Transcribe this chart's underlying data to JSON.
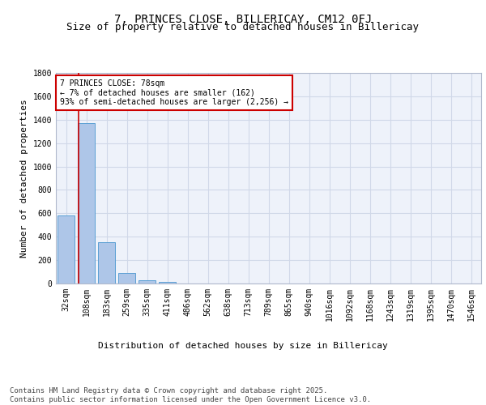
{
  "title": "7, PRINCES CLOSE, BILLERICAY, CM12 0FJ",
  "subtitle": "Size of property relative to detached houses in Billericay",
  "xlabel": "Distribution of detached houses by size in Billericay",
  "ylabel": "Number of detached properties",
  "categories": [
    "32sqm",
    "108sqm",
    "183sqm",
    "259sqm",
    "335sqm",
    "411sqm",
    "486sqm",
    "562sqm",
    "638sqm",
    "713sqm",
    "789sqm",
    "865sqm",
    "940sqm",
    "1016sqm",
    "1092sqm",
    "1168sqm",
    "1243sqm",
    "1319sqm",
    "1395sqm",
    "1470sqm",
    "1546sqm"
  ],
  "values": [
    580,
    1370,
    350,
    90,
    30,
    15,
    0,
    0,
    0,
    0,
    0,
    0,
    0,
    0,
    0,
    0,
    0,
    0,
    0,
    0,
    0
  ],
  "bar_color": "#aec6e8",
  "bar_edgecolor": "#5a9fd4",
  "grid_color": "#d0d8e8",
  "background_color": "#eef2fa",
  "annotation_text": "7 PRINCES CLOSE: 78sqm\n← 7% of detached houses are smaller (162)\n93% of semi-detached houses are larger (2,256) →",
  "annotation_box_color": "#ffffff",
  "annotation_border_color": "#cc0000",
  "ylim": [
    0,
    1800
  ],
  "yticks": [
    0,
    200,
    400,
    600,
    800,
    1000,
    1200,
    1400,
    1600,
    1800
  ],
  "footer_text": "Contains HM Land Registry data © Crown copyright and database right 2025.\nContains public sector information licensed under the Open Government Licence v3.0.",
  "title_fontsize": 10,
  "subtitle_fontsize": 9,
  "axis_label_fontsize": 8,
  "tick_fontsize": 7,
  "annotation_fontsize": 7,
  "footer_fontsize": 6.5
}
